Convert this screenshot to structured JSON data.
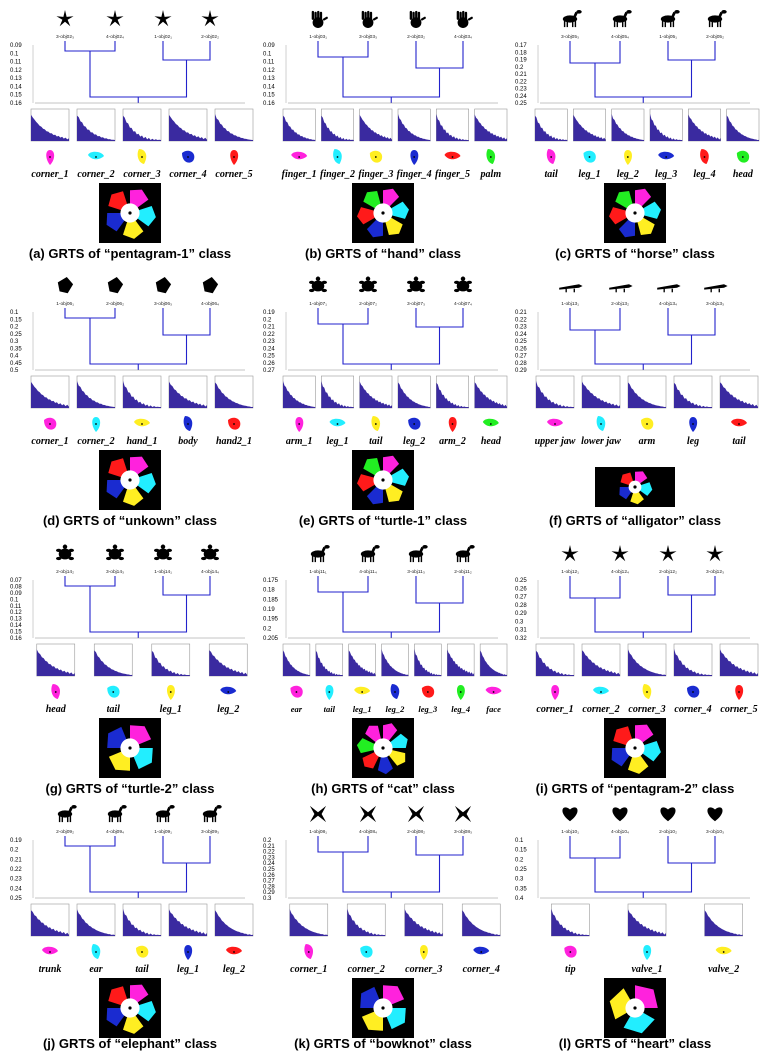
{
  "colors": {
    "tree": "#2222cc",
    "dist": "#3a2aa0",
    "parts": [
      "#ff22dd",
      "#22eeff",
      "#ffee22",
      "#1a2bd0",
      "#ff1a1a",
      "#22ee22"
    ]
  },
  "panels": [
    {
      "id": "a",
      "caption": "(a) GRTS of “pentagram-1” class",
      "shape": "star",
      "yticks": [
        "0.09",
        "0.1",
        "0.11",
        "0.12",
        "0.13",
        "0.14",
        "0.15",
        "0.16"
      ],
      "leaves": [
        "3-obj02₃",
        "4-obj02₄",
        "1-obj02₁",
        "2-obj02₂"
      ],
      "parts": [
        "corner_1",
        "corner_2",
        "corner_3",
        "corner_4",
        "corner_5"
      ]
    },
    {
      "id": "b",
      "caption": "(b) GRTS of “hand” class",
      "shape": "hand",
      "yticks": [
        "0.09",
        "0.1",
        "0.11",
        "0.12",
        "0.13",
        "0.14",
        "0.15",
        "0.16"
      ],
      "leaves": [
        "1-obj03₁",
        "3-obj03₃",
        "2-obj03₂",
        "4-obj03₄"
      ],
      "parts": [
        "finger_1",
        "finger_2",
        "finger_3",
        "finger_4",
        "finger_5",
        "palm"
      ]
    },
    {
      "id": "c",
      "caption": "(c) GRTS of “horse” class",
      "shape": "horse",
      "yticks": [
        "0.17",
        "0.18",
        "0.19",
        "0.2",
        "0.21",
        "0.22",
        "0.23",
        "0.24",
        "0.25"
      ],
      "leaves": [
        "3-obj05₃",
        "4-obj05₄",
        "1-obj05₁",
        "2-obj05₂"
      ],
      "parts": [
        "tail",
        "leg_1",
        "leg_2",
        "leg_3",
        "leg_4",
        "head"
      ]
    },
    {
      "id": "d",
      "caption": "(d) GRTS of “unkown” class",
      "shape": "unknown",
      "yticks": [
        "0.1",
        "0.15",
        "0.2",
        "0.25",
        "0.3",
        "0.35",
        "0.4",
        "0.45",
        "0.5"
      ],
      "leaves": [
        "1-obj06₁",
        "2-obj06₂",
        "3-obj06₃",
        "4-obj06₄"
      ],
      "parts": [
        "corner_1",
        "corner_2",
        "hand_1",
        "body",
        "hand2_1"
      ]
    },
    {
      "id": "e",
      "caption": "(e) GRTS of “turtle-1” class",
      "shape": "turtle",
      "yticks": [
        "0.19",
        "0.2",
        "0.21",
        "0.22",
        "0.23",
        "0.24",
        "0.25",
        "0.26",
        "0.27"
      ],
      "leaves": [
        "1-obj07₁",
        "2-obj07₂",
        "3-obj07₃",
        "4-obj07₄"
      ],
      "parts": [
        "arm_1",
        "leg_1",
        "tail",
        "leg_2",
        "arm_2",
        "head"
      ]
    },
    {
      "id": "f",
      "caption": "(f) GRTS of “alligator” class",
      "shape": "alligator",
      "yticks": [
        "0.21",
        "0.22",
        "0.23",
        "0.24",
        "0.25",
        "0.26",
        "0.27",
        "0.28",
        "0.29"
      ],
      "leaves": [
        "1-obj13₁",
        "2-obj13₂",
        "4-obj13₄",
        "3-obj13₃"
      ],
      "parts": [
        "upper jaw",
        "lower jaw",
        "arm",
        "leg",
        "tail"
      ]
    },
    {
      "id": "g",
      "caption": "(g) GRTS of “turtle-2” class",
      "shape": "turtle",
      "yticks": [
        "0.07",
        "0.08",
        "0.09",
        "0.1",
        "0.11",
        "0.12",
        "0.13",
        "0.14",
        "0.15",
        "0.16"
      ],
      "leaves": [
        "2-obj14₂",
        "3-obj14₃",
        "1-obj14₁",
        "4-obj14₄"
      ],
      "parts": [
        "head",
        "tail",
        "leg_1",
        "leg_2"
      ]
    },
    {
      "id": "h",
      "caption": "(h) GRTS of “cat” class",
      "shape": "cat",
      "yticks": [
        "0.175",
        "0.18",
        "0.185",
        "0.19",
        "0.195",
        "0.2",
        "0.205"
      ],
      "leaves": [
        "1-obj11₁",
        "4-obj11₄",
        "3-obj11₃",
        "2-obj11₂"
      ],
      "parts": [
        "ear",
        "tail",
        "leg_1",
        "leg_2",
        "leg_3",
        "leg_4",
        "face"
      ]
    },
    {
      "id": "i",
      "caption": "(i) GRTS of “pentagram-2” class",
      "shape": "star2",
      "yticks": [
        "0.25",
        "0.26",
        "0.27",
        "0.28",
        "0.29",
        "0.3",
        "0.31",
        "0.32"
      ],
      "leaves": [
        "1-obj12₁",
        "4-obj12₄",
        "2-obj12₂",
        "3-obj12₃"
      ],
      "parts": [
        "corner_1",
        "corner_2",
        "corner_3",
        "corner_4",
        "corner_5"
      ]
    },
    {
      "id": "j",
      "caption": "(j) GRTS of “elephant” class",
      "shape": "elephant",
      "yticks": [
        "0.19",
        "0.2",
        "0.21",
        "0.22",
        "0.23",
        "0.24",
        "0.25"
      ],
      "leaves": [
        "2-obj09₂",
        "4-obj09₄",
        "1-obj09₁",
        "3-obj09₃"
      ],
      "parts": [
        "trunk",
        "ear",
        "tail",
        "leg_1",
        "leg_2"
      ]
    },
    {
      "id": "k",
      "caption": "(k) GRTS of “bowknot” class",
      "shape": "bowknot",
      "yticks": [
        "0.2",
        "0.21",
        "0.22",
        "0.23",
        "0.24",
        "0.25",
        "0.26",
        "0.27",
        "0.28",
        "0.29",
        "0.3"
      ],
      "leaves": [
        "1-obj08₁",
        "4-obj08₄",
        "2-obj08₂",
        "3-obj08₃"
      ],
      "parts": [
        "corner_1",
        "corner_2",
        "corner_3",
        "corner_4"
      ]
    },
    {
      "id": "l",
      "caption": "(l) GRTS of “heart” class",
      "shape": "heart",
      "yticks": [
        "0.1",
        "0.15",
        "0.2",
        "0.25",
        "0.3",
        "0.35",
        "0.4"
      ],
      "leaves": [
        "1-obj10₁",
        "4-obj10₄",
        "2-obj10₂",
        "3-obj10₃"
      ],
      "parts": [
        "tip",
        "valve_1",
        "valve_2"
      ]
    }
  ]
}
